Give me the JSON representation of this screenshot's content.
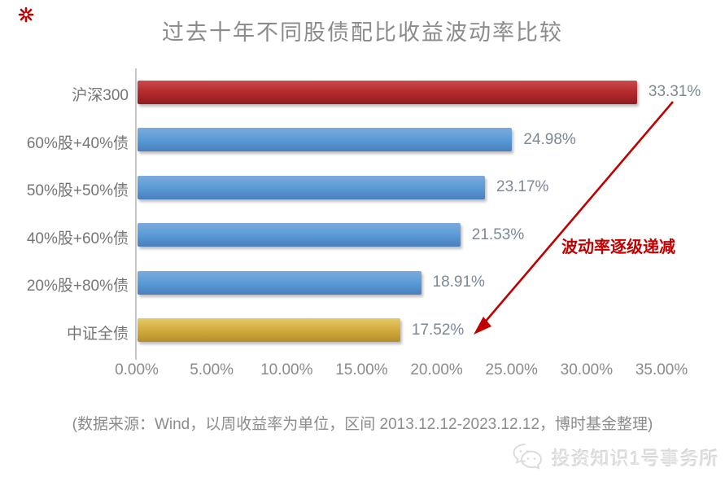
{
  "title": "过去十年不同股债配比收益波动率比较",
  "chart_data": {
    "type": "bar",
    "orientation": "horizontal",
    "categories": [
      "沪深300",
      "60%股+40%债",
      "50%股+50%债",
      "40%股+60%债",
      "20%股+80%债",
      "中证全债"
    ],
    "values": [
      33.31,
      24.98,
      23.17,
      21.53,
      18.91,
      17.52
    ],
    "value_labels": [
      "33.31%",
      "24.98%",
      "23.17%",
      "21.53%",
      "18.91%",
      "17.52%"
    ],
    "bar_colors": [
      {
        "light": "#ca4b4e",
        "base": "#b4292c",
        "dark": "#8f1d20"
      },
      {
        "light": "#7cabde",
        "base": "#5b9bd5",
        "dark": "#4a7ebc"
      },
      {
        "light": "#7cabde",
        "base": "#5b9bd5",
        "dark": "#4a7ebc"
      },
      {
        "light": "#7cabde",
        "base": "#5b9bd5",
        "dark": "#4a7ebc"
      },
      {
        "light": "#7cabde",
        "base": "#5b9bd5",
        "dark": "#4a7ebc"
      },
      {
        "light": "#e5c96a",
        "base": "#d2ac3c",
        "dark": "#b68e2b"
      }
    ],
    "x_tick_labels": [
      "0.00%",
      "5.00%",
      "10.00%",
      "15.00%",
      "20.00%",
      "25.00%",
      "30.00%",
      "35.00%"
    ],
    "x_tick_values": [
      0,
      5,
      10,
      15,
      20,
      25,
      30,
      35
    ],
    "xlim": [
      0,
      35
    ],
    "grid": false,
    "legend": "none",
    "annotation": {
      "text": "波动率逐级递减"
    }
  },
  "footer": {
    "source_note": "(数据来源：Wind，以周收益率为单位，区间 2013.12.12-2023.12.12，博时基金整理)"
  },
  "watermark": {
    "text": "投资知识1号事务所",
    "icon": "wechat-chat-bubbles"
  },
  "colors": {
    "accent_red": "#c00000",
    "title_gray": "#8b8b8b",
    "axis_gray": "#c7c7c7",
    "label_gray": "#757575",
    "value_gray": "#7c8798",
    "watermark_gray": "#e2e2e2"
  }
}
